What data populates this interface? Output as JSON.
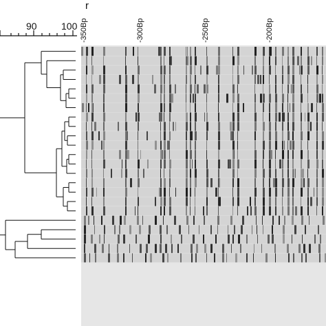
{
  "figure": {
    "scale_letter": "r",
    "scale_ticks": [
      "90",
      "100"
    ],
    "bp_markers": [
      "-350Bp",
      "-300Bp",
      "-250Bp",
      "-200Bp"
    ]
  },
  "gel": {
    "lane_count": 23,
    "background": "#d4d4d4",
    "band_color": "#1a1a1a"
  },
  "dendrogram": {
    "line_color": "#111111",
    "leaf_count": 23
  }
}
